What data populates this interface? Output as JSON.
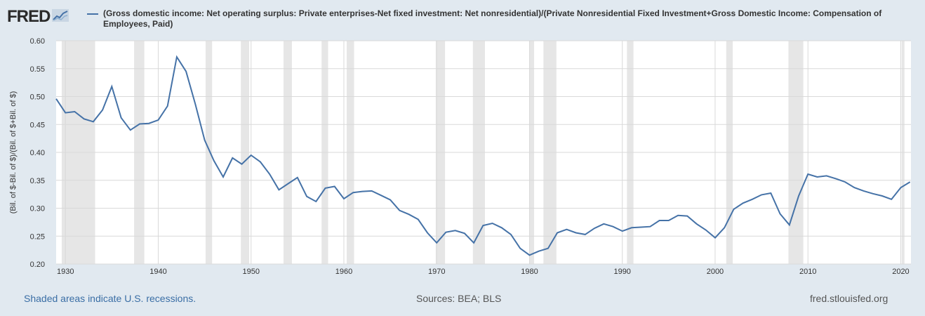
{
  "header": {
    "logo_text": "FRED",
    "logo_icon": "chart-line-icon"
  },
  "colors": {
    "line": "#4572a7",
    "background": "#e1e9f0",
    "plot_bg": "#ffffff",
    "recession": "#e6e6e6",
    "grid": "#d9d9d9",
    "link": "#3a6ea5"
  },
  "chart_data": {
    "type": "line",
    "title": "",
    "series": [
      {
        "name": "(Gross domestic income: Net operating surplus: Private enterprises-Net fixed investment: Net nonresidential)/(Private Nonresidential Fixed Investment+Gross Domestic Income: Compensation of Employees, Paid)",
        "x": [
          1929,
          1930,
          1931,
          1932,
          1933,
          1934,
          1935,
          1936,
          1937,
          1938,
          1939,
          1940,
          1941,
          1942,
          1943,
          1944,
          1945,
          1946,
          1947,
          1948,
          1949,
          1950,
          1951,
          1952,
          1953,
          1954,
          1955,
          1956,
          1957,
          1958,
          1959,
          1960,
          1961,
          1962,
          1963,
          1964,
          1965,
          1966,
          1967,
          1968,
          1969,
          1970,
          1971,
          1972,
          1973,
          1974,
          1975,
          1976,
          1977,
          1978,
          1979,
          1980,
          1981,
          1982,
          1983,
          1984,
          1985,
          1986,
          1987,
          1988,
          1989,
          1990,
          1991,
          1992,
          1993,
          1994,
          1995,
          1996,
          1997,
          1998,
          1999,
          2000,
          2001,
          2002,
          2003,
          2004,
          2005,
          2006,
          2007,
          2008,
          2009,
          2010,
          2011,
          2012,
          2013,
          2014,
          2015,
          2016,
          2017,
          2018,
          2019,
          2020,
          2021
        ],
        "values": [
          0.496,
          0.471,
          0.473,
          0.46,
          0.455,
          0.476,
          0.518,
          0.462,
          0.44,
          0.451,
          0.452,
          0.458,
          0.483,
          0.571,
          0.545,
          0.486,
          0.422,
          0.385,
          0.356,
          0.39,
          0.379,
          0.395,
          0.383,
          0.361,
          0.333,
          0.344,
          0.355,
          0.321,
          0.312,
          0.336,
          0.339,
          0.317,
          0.328,
          0.33,
          0.331,
          0.323,
          0.315,
          0.296,
          0.289,
          0.28,
          0.256,
          0.238,
          0.257,
          0.26,
          0.255,
          0.238,
          0.269,
          0.273,
          0.265,
          0.253,
          0.228,
          0.216,
          0.223,
          0.228,
          0.256,
          0.262,
          0.256,
          0.253,
          0.264,
          0.272,
          0.267,
          0.259,
          0.265,
          0.266,
          0.267,
          0.278,
          0.278,
          0.287,
          0.286,
          0.272,
          0.261,
          0.247,
          0.265,
          0.298,
          0.309,
          0.316,
          0.324,
          0.327,
          0.29,
          0.27,
          0.322,
          0.361,
          0.356,
          0.358,
          0.353,
          0.347,
          0.337,
          0.331,
          0.326,
          0.322,
          0.316,
          0.337,
          0.347
        ]
      }
    ],
    "xlim": [
      1929,
      2021.1
    ],
    "ylim": [
      0.2,
      0.6
    ],
    "yticks": [
      "0.20",
      "0.25",
      "0.30",
      "0.35",
      "0.40",
      "0.45",
      "0.50",
      "0.55",
      "0.60"
    ],
    "xticks": [
      "1930",
      "1940",
      "1950",
      "1960",
      "1970",
      "1980",
      "1990",
      "2000",
      "2010",
      "2020"
    ],
    "ylabel": "(Bil. of $-Bil. of $)/(Bil. of $+Bil. of $)",
    "xlabel": "",
    "grid": true,
    "recessions": [
      [
        1929.6,
        1933.2
      ],
      [
        1937.4,
        1938.5
      ],
      [
        1945.1,
        1945.8
      ],
      [
        1948.9,
        1949.8
      ],
      [
        1953.5,
        1954.4
      ],
      [
        1957.6,
        1958.3
      ],
      [
        1960.3,
        1961.1
      ],
      [
        1969.9,
        1970.9
      ],
      [
        1973.9,
        1975.2
      ],
      [
        1980.0,
        1980.5
      ],
      [
        1981.5,
        1982.9
      ],
      [
        1990.5,
        1991.2
      ],
      [
        2001.2,
        2001.9
      ],
      [
        2007.9,
        2009.5
      ],
      [
        2020.1,
        2020.4
      ]
    ]
  },
  "footer": {
    "recession_note": "Shaded areas indicate U.S. recessions.",
    "sources": "Sources: BEA; BLS",
    "site": "fred.stlouisfed.org"
  }
}
